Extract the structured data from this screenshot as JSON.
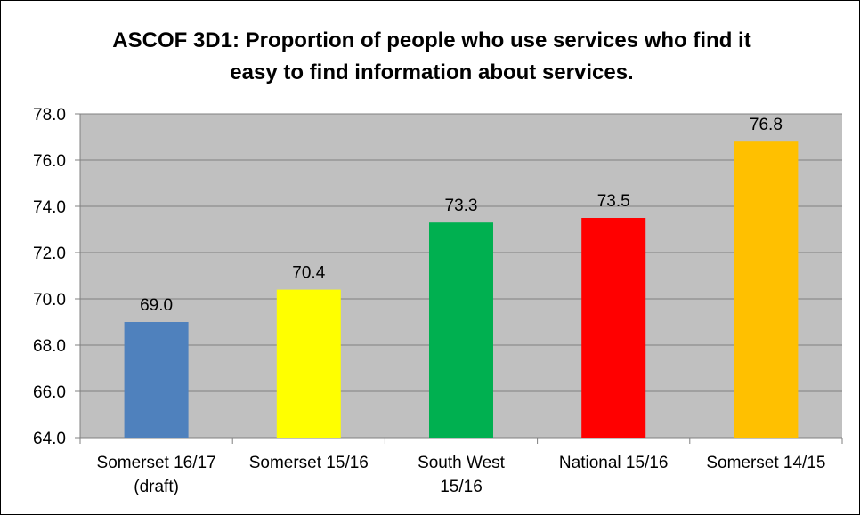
{
  "chart_data": {
    "type": "bar",
    "title_lines": [
      "ASCOF 3D1: Proportion of people who use services who find it",
      "easy to find information about services."
    ],
    "categories": [
      [
        "Somerset 16/17",
        "(draft)"
      ],
      [
        "Somerset 15/16"
      ],
      [
        "South West",
        "15/16"
      ],
      [
        "National 15/16"
      ],
      [
        "Somerset 14/15"
      ]
    ],
    "values": [
      69.0,
      70.4,
      73.3,
      73.5,
      76.8
    ],
    "data_labels": [
      "69.0",
      "70.4",
      "73.3",
      "73.5",
      "76.8"
    ],
    "bar_colors": [
      "#4f81bd",
      "#ffff00",
      "#00b050",
      "#ff0000",
      "#ffc000"
    ],
    "ylim": [
      64,
      78
    ],
    "yticks": [
      64,
      66,
      68,
      70,
      72,
      74,
      76,
      78
    ],
    "ytick_labels": [
      "64.0",
      "66.0",
      "68.0",
      "70.0",
      "72.0",
      "74.0",
      "76.0",
      "78.0"
    ],
    "grid": true,
    "legend": "none",
    "plot_background": "#c0c0c0",
    "xlabel": "",
    "ylabel": ""
  }
}
